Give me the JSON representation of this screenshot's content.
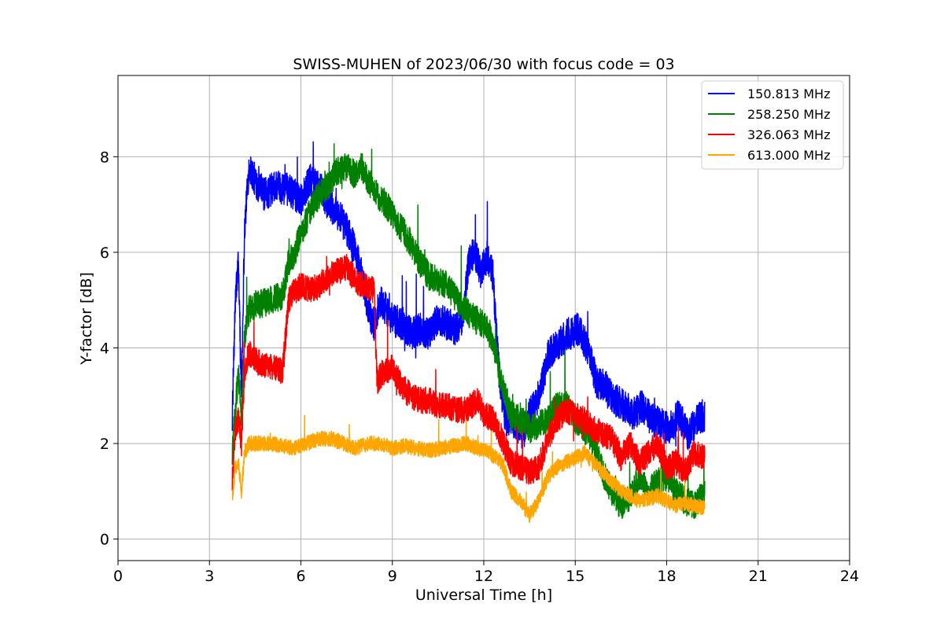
{
  "chart_data": {
    "type": "line",
    "title": "SWISS-MUHEN of 2023/06/30 with focus code = 03",
    "xlabel": "Universal Time [h]",
    "ylabel": "Y-factor [dB]",
    "xlim": [
      0,
      24
    ],
    "ylim": [
      -0.45,
      9.7
    ],
    "xticks": [
      0,
      3,
      6,
      9,
      12,
      15,
      18,
      21,
      24
    ],
    "yticks": [
      0,
      2,
      4,
      6,
      8
    ],
    "grid": true,
    "legend_position": "top-right",
    "series": [
      {
        "name": "150.813 MHz",
        "color": "#0000ff",
        "noise": 0.35,
        "x": [
          3.75,
          3.85,
          3.95,
          4.05,
          4.15,
          4.3,
          4.5,
          4.8,
          5.2,
          5.6,
          6.0,
          6.3,
          6.6,
          6.9,
          7.2,
          7.5,
          7.8,
          8.0,
          8.2,
          8.4,
          8.6,
          8.8,
          9.0,
          9.3,
          9.6,
          9.9,
          10.2,
          10.5,
          10.8,
          11.1,
          11.3,
          11.5,
          11.7,
          11.9,
          12.1,
          12.3,
          12.5,
          12.7,
          12.9,
          13.1,
          13.3,
          13.5,
          13.7,
          13.9,
          14.1,
          14.3,
          14.5,
          14.8,
          15.1,
          15.4,
          15.7,
          16.0,
          16.3,
          16.6,
          16.9,
          17.2,
          17.5,
          17.8,
          18.1,
          18.4,
          18.7,
          19.0,
          19.25
        ],
        "y": [
          2.6,
          5.0,
          5.8,
          3.0,
          6.5,
          7.8,
          7.5,
          7.2,
          7.4,
          7.3,
          7.1,
          7.5,
          7.4,
          7.0,
          6.8,
          6.5,
          6.0,
          5.5,
          4.8,
          4.5,
          5.0,
          4.8,
          4.6,
          4.5,
          4.3,
          4.4,
          4.3,
          4.6,
          4.5,
          4.4,
          4.6,
          5.8,
          6.0,
          5.6,
          5.9,
          5.5,
          3.5,
          2.5,
          2.5,
          2.4,
          2.2,
          2.6,
          2.8,
          3.2,
          3.8,
          4.0,
          4.1,
          4.3,
          4.4,
          4.0,
          3.3,
          3.2,
          2.9,
          2.8,
          2.6,
          2.8,
          2.5,
          2.4,
          2.3,
          2.6,
          2.2,
          2.5,
          2.6
        ]
      },
      {
        "name": "258.250 MHz",
        "color": "#008000",
        "noise": 0.3,
        "x": [
          3.75,
          3.85,
          3.95,
          4.05,
          4.15,
          4.3,
          4.6,
          5.0,
          5.4,
          5.6,
          5.8,
          6.0,
          6.2,
          6.4,
          6.6,
          6.9,
          7.2,
          7.5,
          7.8,
          8.0,
          8.2,
          8.5,
          8.8,
          9.0,
          9.3,
          9.6,
          9.9,
          10.2,
          10.5,
          10.8,
          11.1,
          11.4,
          11.7,
          12.0,
          12.3,
          12.6,
          12.9,
          13.2,
          13.5,
          13.8,
          14.1,
          14.4,
          14.7,
          15.0,
          15.3,
          15.6,
          15.9,
          16.2,
          16.5,
          16.8,
          17.1,
          17.4,
          17.7,
          18.0,
          18.3,
          18.6,
          18.9,
          19.25
        ],
        "y": [
          1.8,
          2.7,
          3.5,
          2.5,
          4.2,
          4.8,
          4.9,
          5.0,
          5.1,
          5.8,
          6.0,
          6.4,
          6.7,
          7.0,
          7.2,
          7.4,
          7.7,
          7.8,
          7.6,
          7.8,
          7.5,
          7.2,
          7.0,
          6.8,
          6.5,
          6.2,
          5.8,
          5.5,
          5.4,
          5.3,
          5.0,
          4.8,
          4.6,
          4.5,
          4.2,
          3.2,
          2.6,
          2.5,
          2.3,
          2.4,
          2.5,
          2.8,
          2.8,
          2.5,
          2.3,
          2.0,
          1.4,
          1.0,
          0.7,
          0.9,
          1.3,
          1.0,
          1.2,
          1.3,
          1.0,
          0.8,
          0.7,
          1.0
        ]
      },
      {
        "name": "326.063 MHz",
        "color": "#ff0000",
        "noise": 0.28,
        "x": [
          3.75,
          3.85,
          3.95,
          4.05,
          4.15,
          4.3,
          4.6,
          5.0,
          5.4,
          5.6,
          5.8,
          6.0,
          6.3,
          6.6,
          6.9,
          7.2,
          7.5,
          7.8,
          8.1,
          8.4,
          8.5,
          8.7,
          9.0,
          9.3,
          9.6,
          9.9,
          10.2,
          10.5,
          10.8,
          11.1,
          11.4,
          11.6,
          11.8,
          12.0,
          12.3,
          12.6,
          12.9,
          13.2,
          13.5,
          13.8,
          14.1,
          14.4,
          14.7,
          15.0,
          15.3,
          15.6,
          15.9,
          16.2,
          16.5,
          16.8,
          17.1,
          17.4,
          17.7,
          18.0,
          18.3,
          18.6,
          18.9,
          19.25
        ],
        "y": [
          1.2,
          2.3,
          2.5,
          2.0,
          3.5,
          3.9,
          3.7,
          3.6,
          3.5,
          5.0,
          5.2,
          5.3,
          5.2,
          5.3,
          5.5,
          5.6,
          5.7,
          5.4,
          5.3,
          5.2,
          3.3,
          3.5,
          3.6,
          3.2,
          3.0,
          2.9,
          2.9,
          2.8,
          2.8,
          2.7,
          2.7,
          2.8,
          2.9,
          2.6,
          2.5,
          2.1,
          1.6,
          1.5,
          1.4,
          1.5,
          2.1,
          2.5,
          2.7,
          2.6,
          2.5,
          2.3,
          2.2,
          2.1,
          1.7,
          2.0,
          1.6,
          1.8,
          2.0,
          1.5,
          1.6,
          1.4,
          1.8,
          1.7
        ]
      },
      {
        "name": "613.000 MHz",
        "color": "#ffa500",
        "noise": 0.16,
        "x": [
          3.75,
          3.85,
          3.95,
          4.05,
          4.15,
          4.3,
          4.6,
          5.0,
          5.4,
          5.8,
          6.2,
          6.6,
          7.0,
          7.4,
          7.8,
          8.2,
          8.6,
          9.0,
          9.4,
          9.8,
          10.2,
          10.6,
          11.0,
          11.4,
          11.8,
          12.2,
          12.6,
          12.9,
          13.2,
          13.5,
          13.8,
          14.1,
          14.4,
          14.7,
          15.0,
          15.3,
          15.6,
          15.9,
          16.2,
          16.5,
          16.8,
          17.1,
          17.4,
          17.7,
          18.0,
          18.3,
          18.6,
          18.9,
          19.25
        ],
        "y": [
          0.9,
          1.5,
          1.6,
          1.0,
          1.8,
          2.0,
          2.0,
          2.0,
          1.95,
          1.9,
          2.0,
          2.1,
          2.1,
          2.0,
          1.9,
          2.0,
          2.0,
          1.9,
          1.95,
          1.9,
          1.85,
          1.9,
          1.95,
          2.0,
          1.9,
          1.8,
          1.6,
          1.0,
          0.8,
          0.5,
          0.8,
          1.3,
          1.5,
          1.6,
          1.7,
          1.8,
          1.6,
          1.4,
          1.2,
          1.0,
          0.9,
          0.8,
          0.85,
          0.9,
          0.8,
          0.7,
          0.75,
          0.7,
          0.65
        ]
      }
    ]
  }
}
